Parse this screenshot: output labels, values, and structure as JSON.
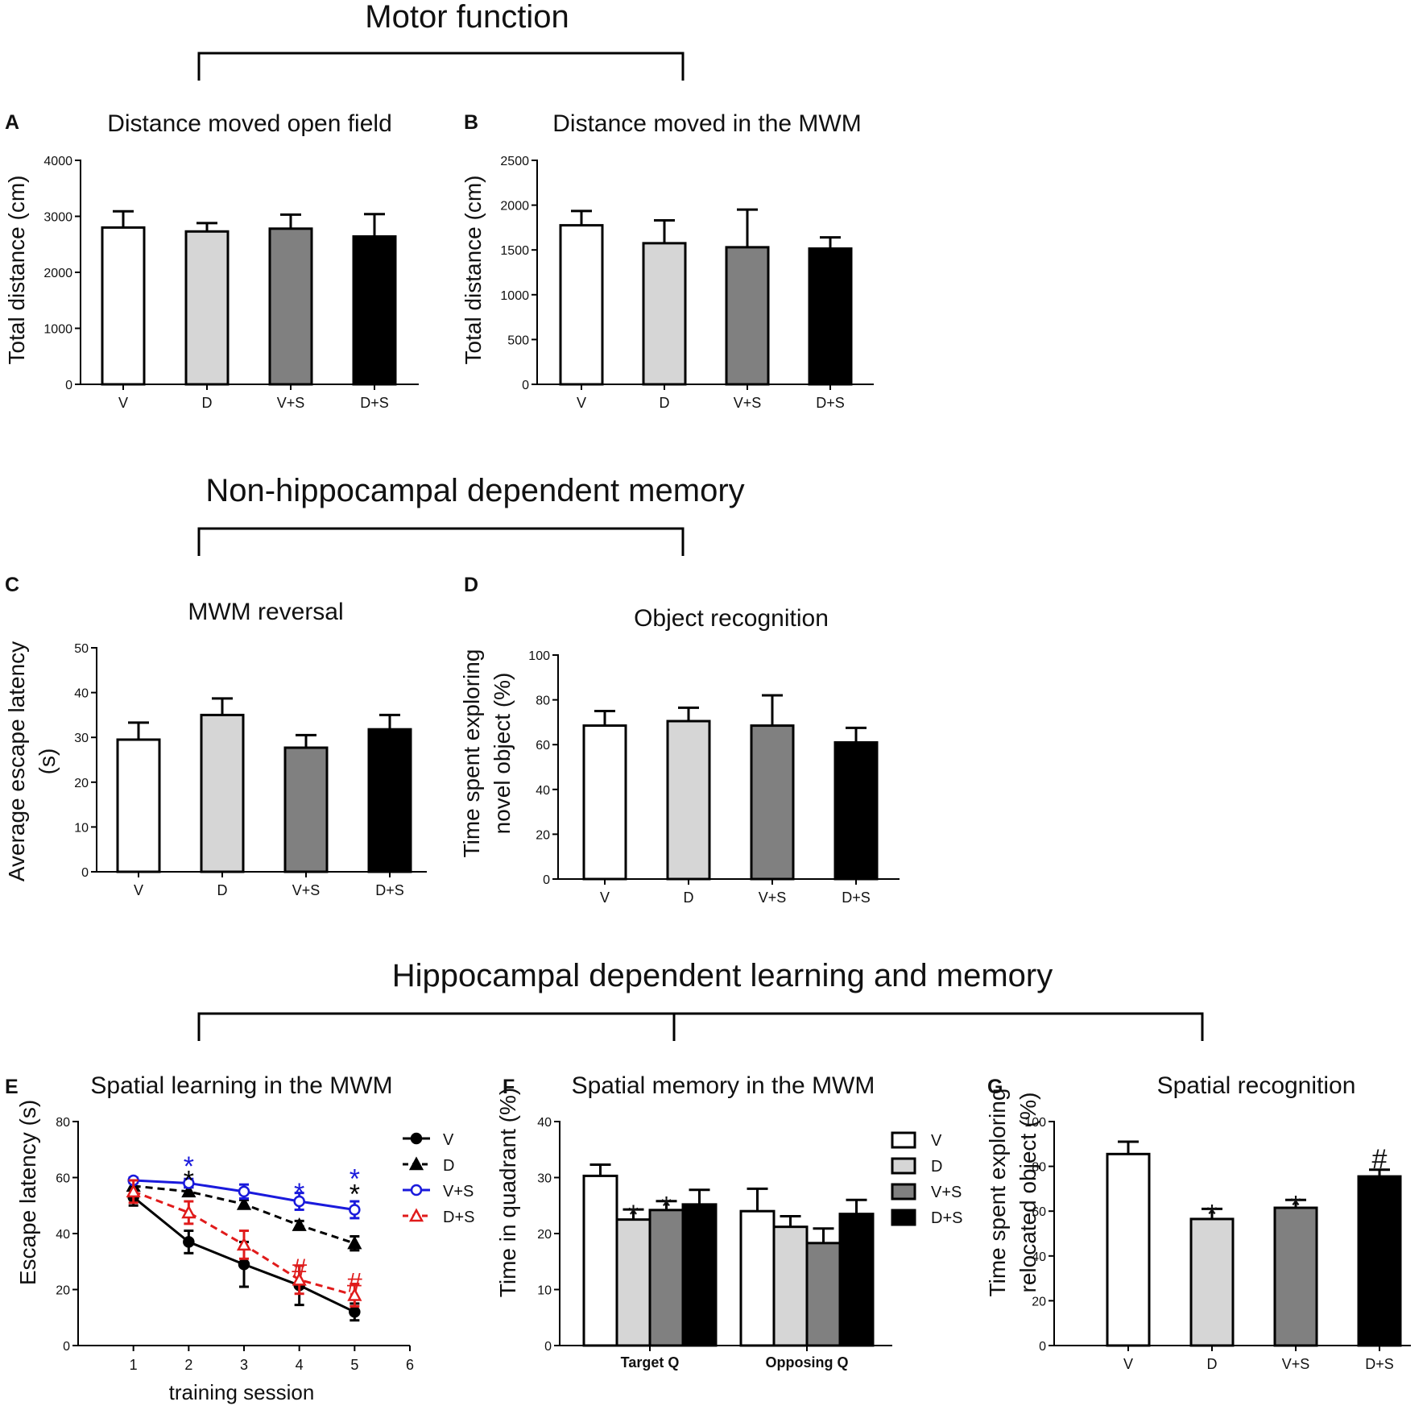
{
  "colors": {
    "V": "#ffffff",
    "D": "#d6d6d6",
    "V+S": "#808080",
    "D+S": "#000000",
    "line_V": "#000000",
    "line_D": "#000000",
    "line_VS": "#1a1adc",
    "line_DS": "#e01b1b"
  },
  "sections": {
    "motor": "Motor function",
    "nonhippo": "Non-hippocampal dependent memory",
    "hippo": "Hippocampal dependent learning and memory"
  },
  "chart_data": [
    {
      "id": "A",
      "letter": "A",
      "type": "bar",
      "title": "Distance moved open field",
      "ylabel": "Total distance (cm)",
      "ylabel_lines": [
        "Total distance (cm)"
      ],
      "ylim": [
        0,
        4000
      ],
      "yticks": [
        "0",
        "1000",
        "2000",
        "3000",
        "4000"
      ],
      "categories": [
        "V",
        "D",
        "V+S",
        "D+S"
      ],
      "values": [
        2800,
        2730,
        2780,
        2640
      ],
      "errors": [
        290,
        150,
        250,
        400
      ],
      "annotations": []
    },
    {
      "id": "B",
      "letter": "B",
      "type": "bar",
      "title": "Distance moved in the MWM",
      "ylabel": "Total distance (cm)",
      "ylabel_lines": [
        "Total distance (cm)"
      ],
      "ylim": [
        0,
        2500
      ],
      "yticks": [
        "0",
        "500",
        "1000",
        "1500",
        "2000",
        "2500"
      ],
      "categories": [
        "V",
        "D",
        "V+S",
        "D+S"
      ],
      "values": [
        1775,
        1575,
        1530,
        1515
      ],
      "errors": [
        160,
        255,
        420,
        125
      ],
      "annotations": []
    },
    {
      "id": "C",
      "letter": "C",
      "type": "bar",
      "title": "MWM reversal",
      "ylabel": "Average escape latency (s)",
      "ylabel_lines": [
        "Average escape latency",
        "(s)"
      ],
      "ylim": [
        0,
        50
      ],
      "yticks": [
        "0",
        "10",
        "20",
        "30",
        "40",
        "50"
      ],
      "categories": [
        "V",
        "D",
        "V+S",
        "D+S"
      ],
      "values": [
        29.5,
        35,
        27.7,
        31.8
      ],
      "errors": [
        3.8,
        3.7,
        2.8,
        3.2
      ],
      "annotations": []
    },
    {
      "id": "D",
      "letter": "D",
      "type": "bar",
      "title": "Object recognition",
      "ylabel": "Time spent exploring novel object (%)",
      "ylabel_lines": [
        "Time spent exploring",
        "novel object (%)"
      ],
      "ylim": [
        0,
        100
      ],
      "yticks": [
        "0",
        "20",
        "40",
        "60",
        "80",
        "100"
      ],
      "categories": [
        "V",
        "D",
        "V+S",
        "D+S"
      ],
      "values": [
        68.5,
        70.5,
        68.5,
        61
      ],
      "errors": [
        6.5,
        6,
        13.5,
        6.5
      ],
      "annotations": []
    },
    {
      "id": "E",
      "letter": "E",
      "type": "line",
      "title": "Spatial learning in the MWM",
      "ylabel": "Escape latency (s)",
      "xlabel": "training session",
      "xlim": [
        0,
        6
      ],
      "ylim": [
        0,
        80
      ],
      "xticks": [
        "1",
        "2",
        "3",
        "4",
        "5",
        "6"
      ],
      "yticks": [
        "0",
        "20",
        "40",
        "60",
        "80"
      ],
      "x": [
        1,
        2,
        3,
        4,
        5
      ],
      "series": [
        {
          "name": "V",
          "marker": "circle-filled",
          "dash": "solid",
          "values": [
            53,
            37,
            29,
            21.5,
            12
          ],
          "errors": [
            3,
            4,
            8,
            7,
            3
          ]
        },
        {
          "name": "D",
          "marker": "triangle-filled",
          "dash": "dashed",
          "values": [
            57,
            55,
            50.5,
            43,
            36.5
          ],
          "errors": [
            1.5,
            1.5,
            1.5,
            1.5,
            2.5
          ]
        },
        {
          "name": "V+S",
          "marker": "circle-open",
          "dash": "solid",
          "values": [
            59,
            58,
            55,
            51.5,
            48.5
          ],
          "errors": [
            1,
            1.5,
            2.5,
            3,
            3
          ]
        },
        {
          "name": "D+S",
          "marker": "triangle-open",
          "dash": "dashed",
          "values": [
            55,
            47.5,
            36,
            23.5,
            18
          ],
          "errors": [
            4,
            4,
            5,
            5,
            4
          ]
        }
      ],
      "annotations": [
        {
          "x": 2,
          "y": 66.5,
          "text": "*",
          "color": "#1a1adc"
        },
        {
          "x": 2,
          "y": 61.5,
          "text": "*",
          "color": "#000000"
        },
        {
          "x": 4,
          "y": 57,
          "text": "*",
          "color": "#1a1adc"
        },
        {
          "x": 5,
          "y": 62,
          "text": "*",
          "color": "#1a1adc"
        },
        {
          "x": 5,
          "y": 56.5,
          "text": "*",
          "color": "#000000"
        },
        {
          "x": 4,
          "y": 27,
          "text": "#",
          "color": "#e01b1b"
        },
        {
          "x": 5,
          "y": 22,
          "text": "#",
          "color": "#e01b1b"
        }
      ]
    },
    {
      "id": "F",
      "letter": "F",
      "type": "bar",
      "title": "Spatial memory in the MWM",
      "ylabel": "Time in quadrant (%)",
      "ylim": [
        0,
        40
      ],
      "yticks": [
        "0",
        "10",
        "20",
        "30",
        "40"
      ],
      "categories": [
        "Target Q",
        "Opposing Q"
      ],
      "series": [
        {
          "name": "V",
          "values": [
            30.3,
            24
          ],
          "errors": [
            2,
            4
          ]
        },
        {
          "name": "D",
          "values": [
            22.5,
            21.2
          ],
          "errors": [
            1.8,
            1.9
          ]
        },
        {
          "name": "V+S",
          "values": [
            24.2,
            18.3
          ],
          "errors": [
            1.6,
            2.6
          ]
        },
        {
          "name": "D+S",
          "values": [
            25.2,
            23.5
          ],
          "errors": [
            2.6,
            2.5
          ]
        }
      ],
      "annotations": [
        {
          "category": 0,
          "series": 1,
          "text": "*"
        },
        {
          "category": 0,
          "series": 2,
          "text": "*"
        }
      ]
    },
    {
      "id": "G",
      "letter": "G",
      "type": "bar",
      "title": "Spatial recognition",
      "ylabel": "Time spent exploring relocated object (%)",
      "ylabel_lines": [
        "Time spent exploring",
        "relocated object (%)"
      ],
      "ylim": [
        0,
        100
      ],
      "yticks": [
        "0",
        "20",
        "40",
        "60",
        "80",
        "100"
      ],
      "categories": [
        "V",
        "D",
        "V+S",
        "D+S"
      ],
      "values": [
        85.5,
        56.5,
        61.5,
        75.5
      ],
      "errors": [
        5.5,
        4.5,
        3.5,
        3
      ],
      "annotations": [
        {
          "index": 1,
          "text": "*"
        },
        {
          "index": 2,
          "text": "*"
        },
        {
          "index": 3,
          "text": "#"
        }
      ]
    }
  ]
}
